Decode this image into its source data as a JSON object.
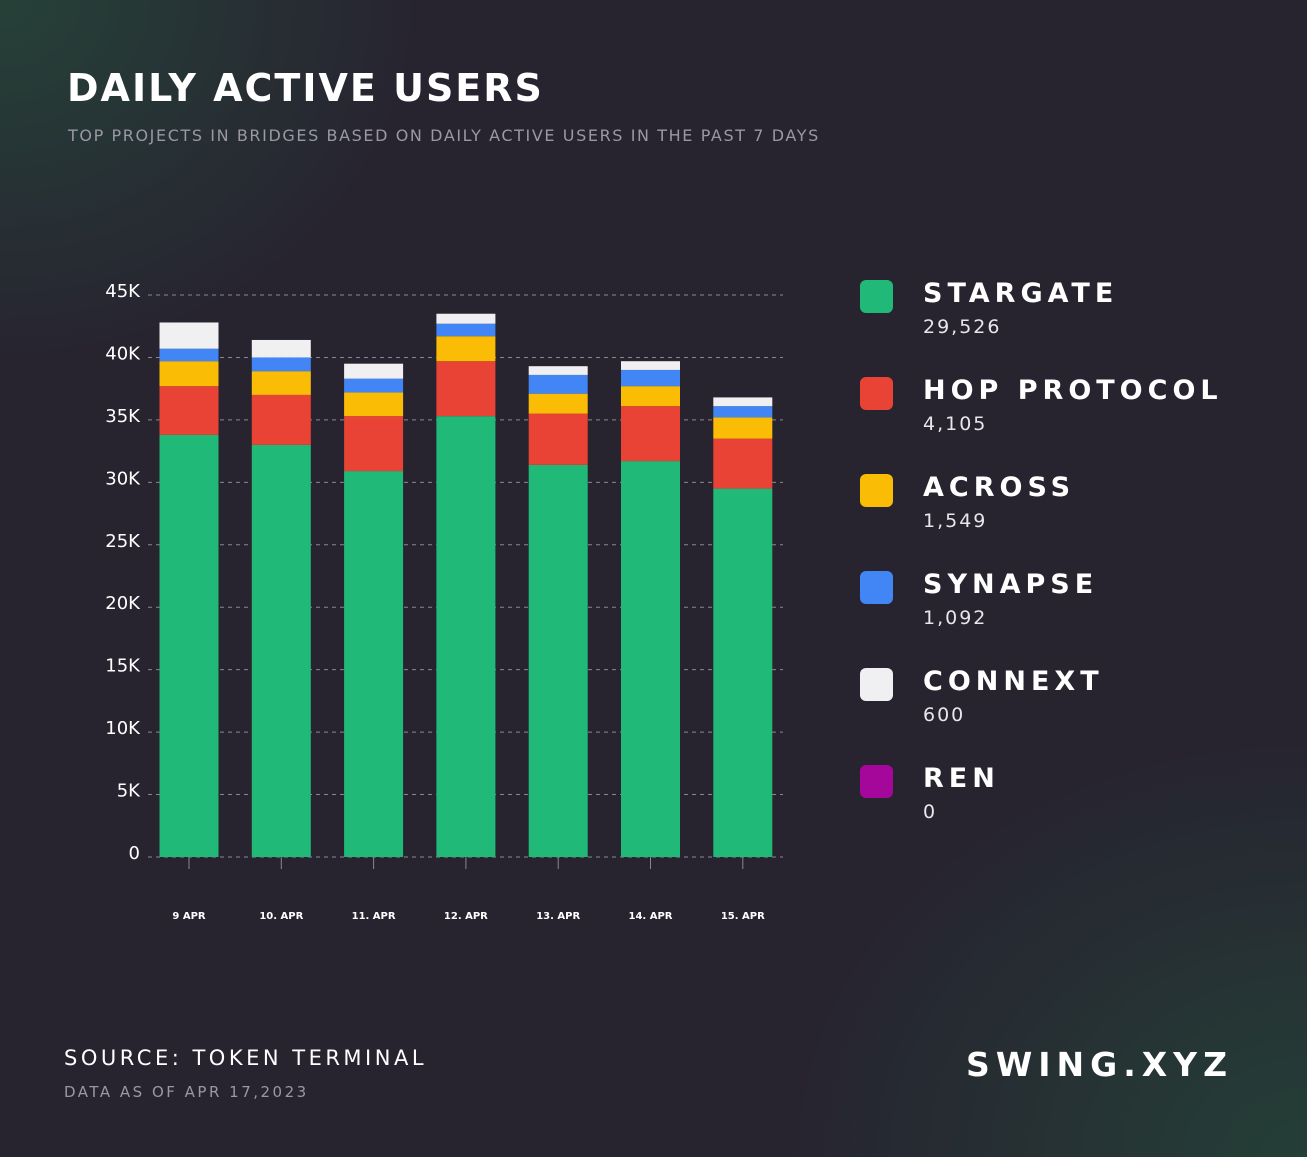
{
  "header": {
    "title": "DAILY ACTIVE USERS",
    "subtitle": "TOP PROJECTS IN BRIDGES BASED ON DAILY ACTIVE USERS IN THE PAST 7 DAYS"
  },
  "legend": [
    {
      "name": "STARGATE",
      "value": "29,526",
      "color": "#21b978"
    },
    {
      "name": "HOP PROTOCOL",
      "value": "4,105",
      "color": "#e94335"
    },
    {
      "name": "ACROSS",
      "value": "1,549",
      "color": "#fbbc05"
    },
    {
      "name": "SYNAPSE",
      "value": "1,092",
      "color": "#4285f4"
    },
    {
      "name": "CONNEXT",
      "value": "600",
      "color": "#f0eff2"
    },
    {
      "name": "REN",
      "value": "0",
      "color": "#a4079a"
    }
  ],
  "footer": {
    "source": "SOURCE: TOKEN TERMINAL",
    "data_as_of": "DATA AS OF APR 17,2023",
    "brand": "SWING.XYZ"
  },
  "chart_data": {
    "type": "bar",
    "stacked": true,
    "categories": [
      "9 APR",
      "10. APR",
      "11. APR",
      "12. APR",
      "13. APR",
      "14. APR",
      "15. APR"
    ],
    "series": [
      {
        "name": "STARGATE",
        "color": "#21b978",
        "values": [
          33800,
          33000,
          30900,
          35300,
          31400,
          31700,
          29500
        ]
      },
      {
        "name": "HOP PROTOCOL",
        "color": "#e94335",
        "values": [
          3900,
          4000,
          4400,
          4400,
          4100,
          4400,
          4000
        ]
      },
      {
        "name": "ACROSS",
        "color": "#fbbc05",
        "values": [
          2000,
          1900,
          1900,
          2000,
          1600,
          1600,
          1700
        ]
      },
      {
        "name": "SYNAPSE",
        "color": "#4285f4",
        "values": [
          1000,
          1100,
          1100,
          1000,
          1500,
          1300,
          900
        ]
      },
      {
        "name": "CONNEXT",
        "color": "#f0eff2",
        "values": [
          2100,
          1400,
          1200,
          800,
          700,
          700,
          700
        ]
      },
      {
        "name": "REN",
        "color": "#a4079a",
        "values": [
          0,
          0,
          0,
          0,
          0,
          0,
          0
        ]
      }
    ],
    "yticks": [
      "0",
      "5K",
      "10K",
      "15K",
      "20K",
      "25K",
      "30K",
      "35K",
      "40K",
      "45K"
    ],
    "ytick_values": [
      0,
      5000,
      10000,
      15000,
      20000,
      25000,
      30000,
      35000,
      40000,
      45000
    ],
    "ylim": [
      0,
      45000
    ],
    "grid": true,
    "legend_position": "right"
  }
}
